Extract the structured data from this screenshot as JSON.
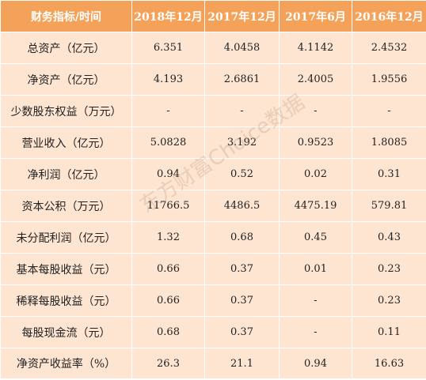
{
  "table": {
    "headers": [
      "财务指标/时间",
      "2018年12月",
      "2017年12月",
      "2017年6月",
      "2016年12月"
    ],
    "rows": [
      [
        "总资产（亿元）",
        "6.351",
        "4.0458",
        "4.1142",
        "2.4532"
      ],
      [
        "净资产（亿元）",
        "4.193",
        "2.6861",
        "2.4005",
        "1.9556"
      ],
      [
        "少数股东权益（万元）",
        "-",
        "-",
        "-",
        "-"
      ],
      [
        "营业收入（亿元）",
        "5.0828",
        "3.192",
        "0.9523",
        "1.8085"
      ],
      [
        "净利润（亿元）",
        "0.94",
        "0.52",
        "0.02",
        "0.31"
      ],
      [
        "资本公积（万元）",
        "11766.5",
        "4486.5",
        "4475.19",
        "579.81"
      ],
      [
        "未分配利润（亿元）",
        "1.32",
        "0.68",
        "0.45",
        "0.43"
      ],
      [
        "基本每股收益（元）",
        "0.66",
        "0.37",
        "0.01",
        "0.23"
      ],
      [
        "稀释每股收益（元）",
        "0.66",
        "0.37",
        "-",
        "0.23"
      ],
      [
        "每股现金流（元）",
        "0.68",
        "0.37",
        "-",
        "0.11"
      ],
      [
        "净资产收益率（%）",
        "26.3",
        "21.1",
        "0.94",
        "16.63"
      ]
    ]
  },
  "watermark": "东方财富Choice数据",
  "colors": {
    "header_bg": "#f4a259",
    "cell_bg": "#fde5d2",
    "header_text": "#ffffff"
  }
}
